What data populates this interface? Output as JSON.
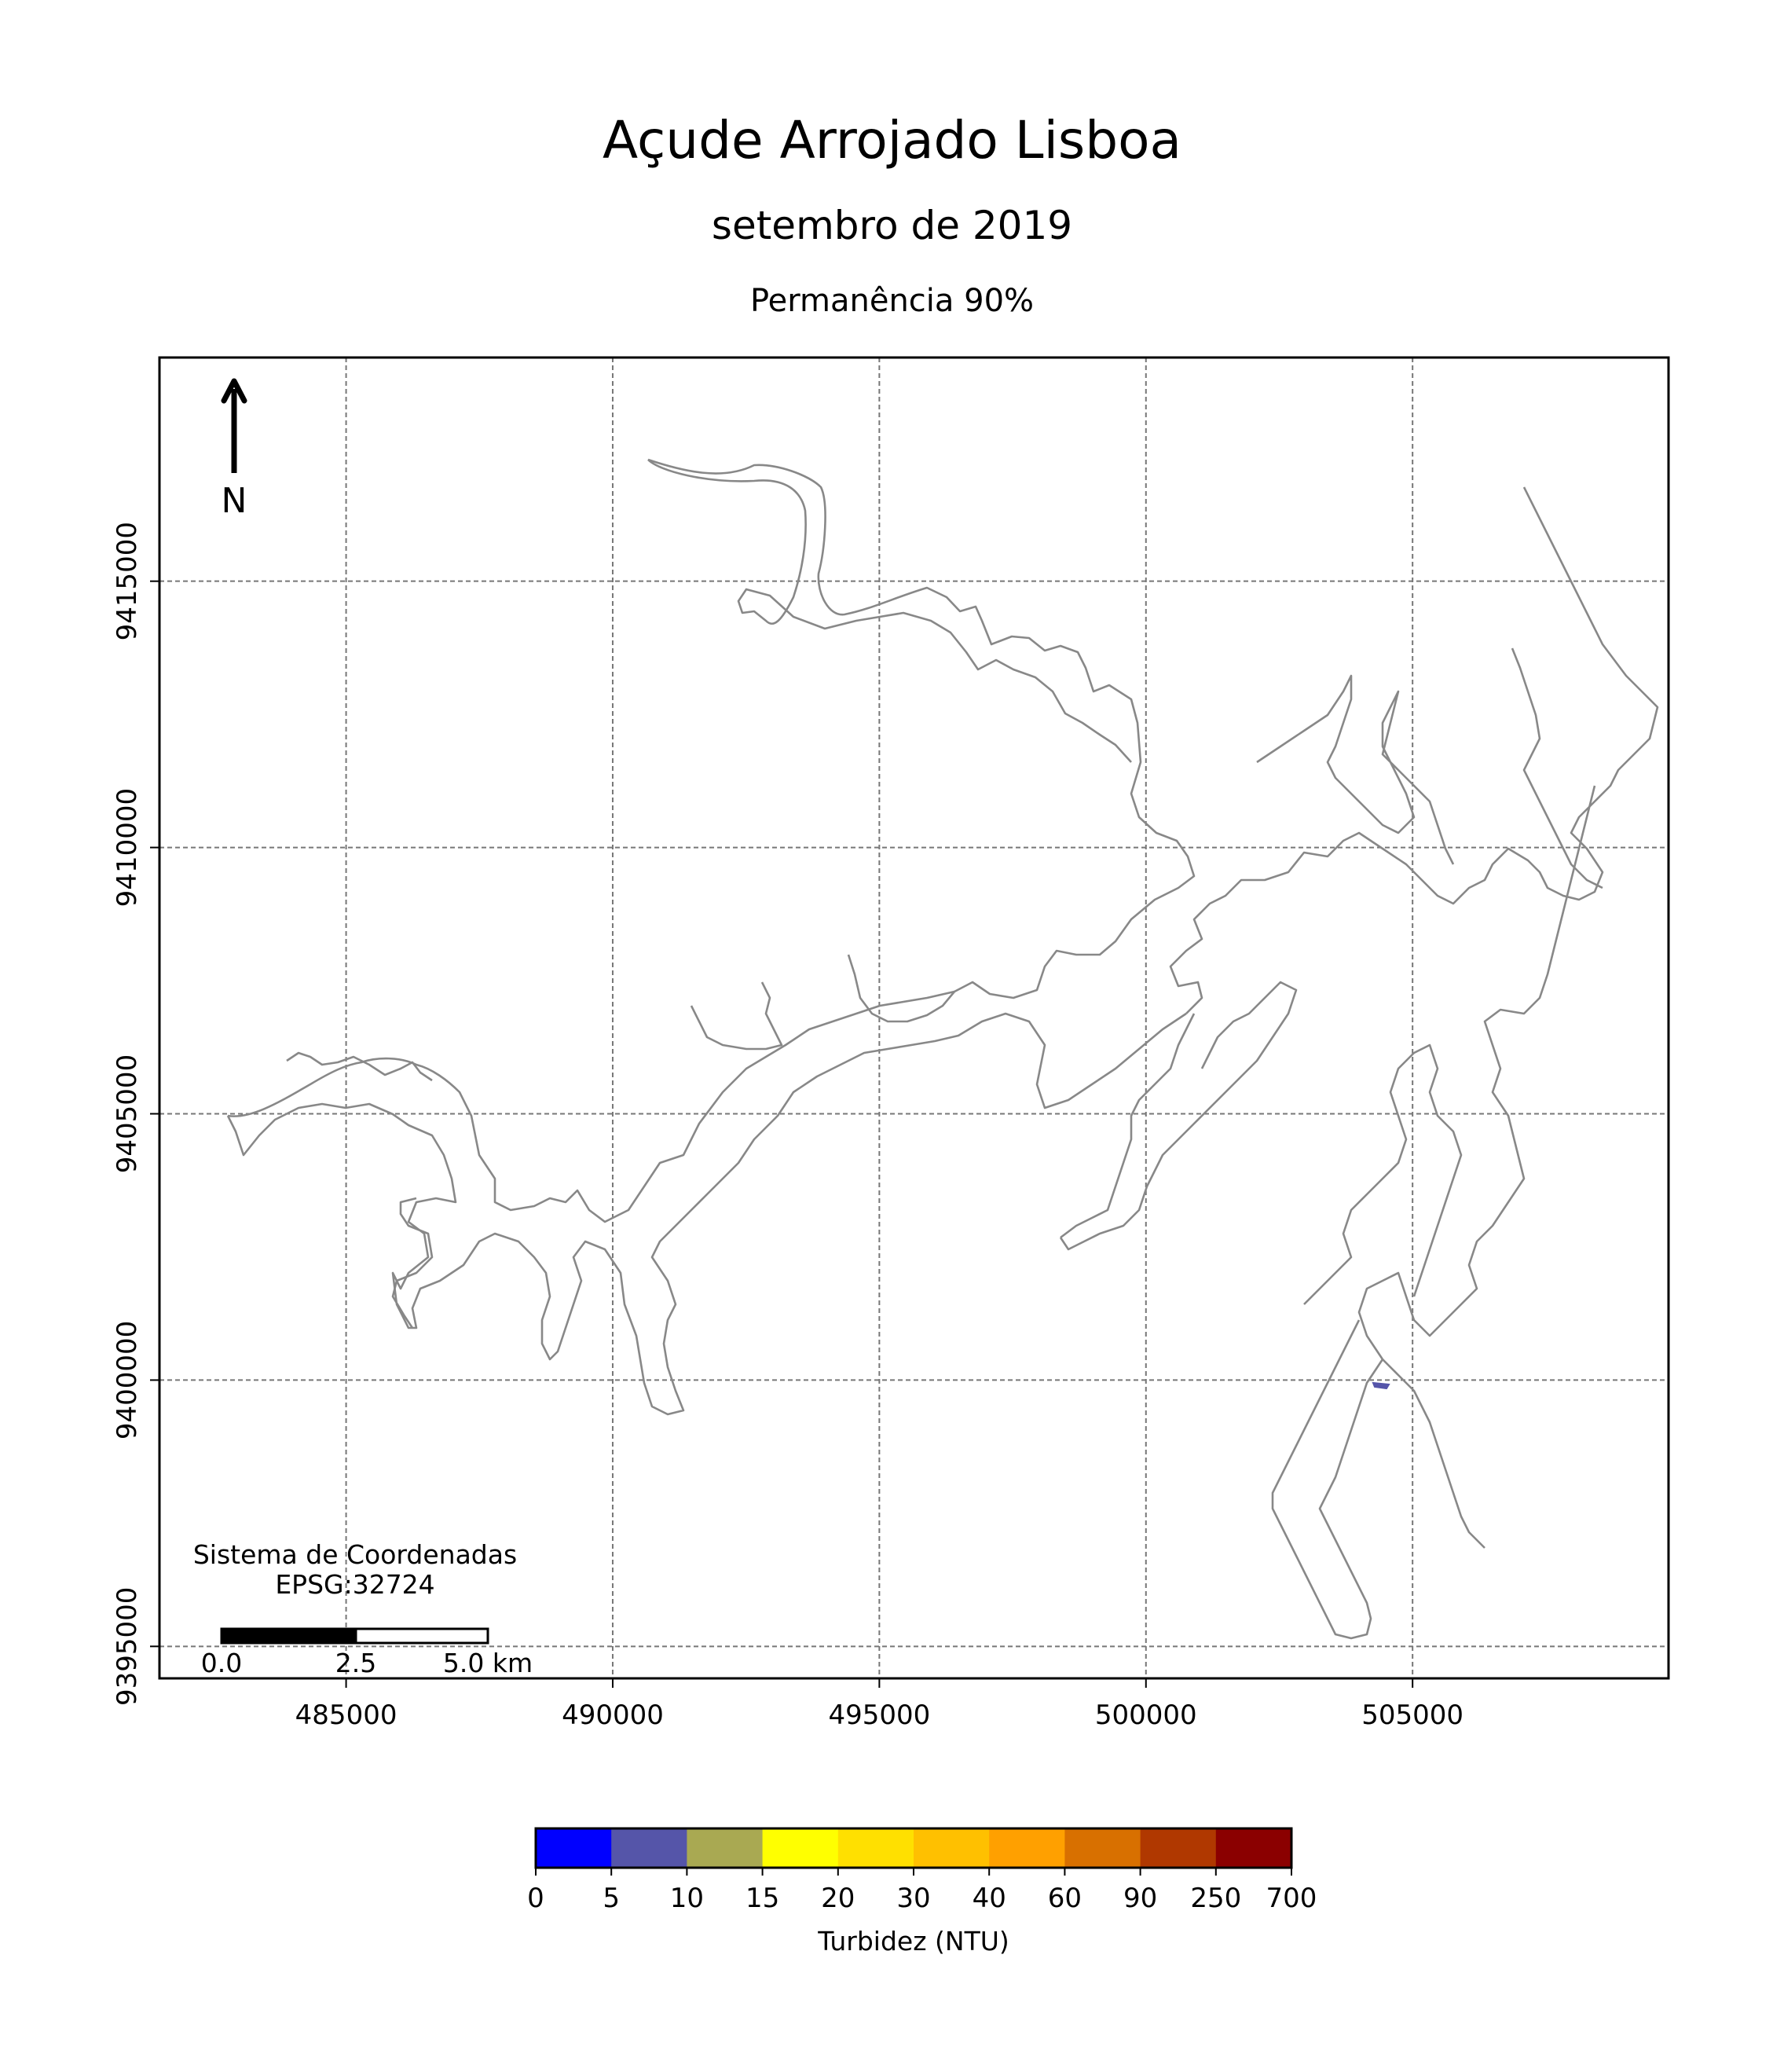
{
  "map": {
    "title": "Açude Arrojado Lisboa",
    "subtitle": "setembro de 2019",
    "subtitle2": "Permanência 90%",
    "north_label": "N",
    "crs_line1": "Sistema de Coordenadas",
    "crs_line2": "EPSG:32724",
    "x_ticks": [
      "485000",
      "490000",
      "495000",
      "500000",
      "505000"
    ],
    "y_ticks": [
      "9415000",
      "9410000",
      "9405000",
      "9400000",
      "9395000"
    ],
    "x_range": [
      481500,
      509800
    ],
    "y_range": [
      9394400,
      9419200
    ],
    "grid": true,
    "outline_color": "#888888"
  },
  "scale_bar": {
    "labels": [
      "0.0",
      "2.5",
      "5.0 km"
    ]
  },
  "colorbar": {
    "label": "Turbidez (NTU)",
    "boundaries": [
      "0",
      "5",
      "10",
      "15",
      "20",
      "30",
      "40",
      "60",
      "90",
      "250",
      "700"
    ],
    "colors": [
      "#0000ff",
      "#5555a9",
      "#a9a952",
      "#ffff00",
      "#ffe000",
      "#ffc000",
      "#ffa000",
      "#d87000",
      "#b03800",
      "#8b0000"
    ]
  }
}
